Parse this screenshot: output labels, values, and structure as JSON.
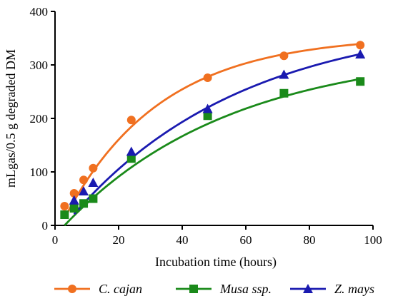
{
  "chart_data": {
    "type": "scatter",
    "title": "",
    "xlabel": "Incubation time (hours)",
    "ylabel": "mLgas/0.5 g  degraded DM",
    "xlim": [
      0,
      100
    ],
    "ylim": [
      0,
      400
    ],
    "xticks": [
      "0",
      "20",
      "40",
      "60",
      "80",
      "100"
    ],
    "yticks": [
      "0",
      "100",
      "200",
      "300",
      "400"
    ],
    "grid": false,
    "legend_position": "bottom",
    "series": [
      {
        "name": "C. cajan",
        "color": "#F07020",
        "marker": "circle",
        "x": [
          3,
          6,
          9,
          12,
          24,
          48,
          72,
          96
        ],
        "y": [
          36,
          60,
          85,
          107,
          197,
          276,
          317,
          337
        ],
        "fit": {
          "type": "exponential",
          "a": 355,
          "c": 0.033,
          "lag": 1.8
        }
      },
      {
        "name": "Musa ssp.",
        "color": "#1A8A1A",
        "marker": "square",
        "x": [
          3,
          6,
          9,
          12,
          24,
          48,
          72,
          96
        ],
        "y": [
          20,
          32,
          41,
          50,
          125,
          205,
          247,
          269
        ],
        "fit": {
          "type": "exponential",
          "a": 330,
          "c": 0.019,
          "lag": 3
        }
      },
      {
        "name": "Z. mays",
        "color": "#1A1AB0",
        "marker": "triangle",
        "x": [
          6,
          9,
          12,
          24,
          48,
          72,
          96
        ],
        "y": [
          47,
          64,
          80,
          138,
          218,
          282,
          320
        ],
        "fit": {
          "type": "exponential",
          "a": 390,
          "c": 0.0185,
          "lag": 3
        }
      }
    ]
  }
}
